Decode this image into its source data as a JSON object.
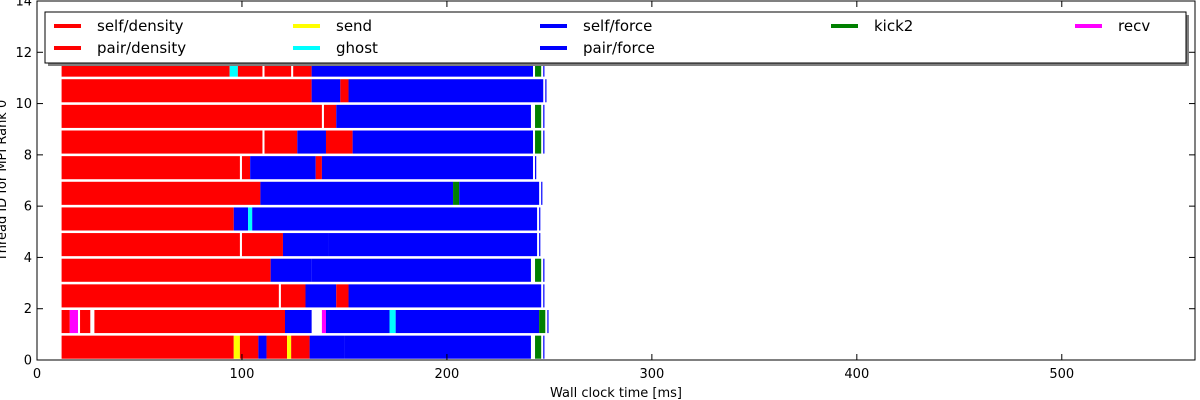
{
  "chart_data": {
    "type": "task-timeline",
    "xlabel": "Wall clock time [ms]",
    "ylabel": "Thread ID for MPI Rank 0",
    "xlim": [
      0,
      565
    ],
    "ylim": [
      0,
      14
    ],
    "xticks": [
      0,
      100,
      200,
      300,
      400,
      500
    ],
    "yticks": [
      0,
      2,
      4,
      6,
      8,
      10,
      12,
      14
    ],
    "legend_position": "top (full width, 5 columns)",
    "legend": [
      {
        "name": "self/density",
        "color": "#ff0000"
      },
      {
        "name": "pair/density",
        "color": "#ff0000"
      },
      {
        "name": "send",
        "color": "#ffff00"
      },
      {
        "name": "ghost",
        "color": "#00ffff"
      },
      {
        "name": "self/force",
        "color": "#0000ff"
      },
      {
        "name": "pair/force",
        "color": "#0000ff"
      },
      {
        "name": "kick2",
        "color": "#008000"
      },
      {
        "name": "recv",
        "color": "#ff00ff"
      }
    ],
    "threads": [
      {
        "id": 0,
        "segments": [
          {
            "task": "density",
            "start": 12,
            "end": 96
          },
          {
            "task": "send",
            "start": 96,
            "end": 99
          },
          {
            "task": "density",
            "start": 99,
            "end": 108
          },
          {
            "task": "force",
            "start": 108,
            "end": 112
          },
          {
            "task": "density",
            "start": 112,
            "end": 122
          },
          {
            "task": "send",
            "start": 122,
            "end": 124
          },
          {
            "task": "density",
            "start": 124,
            "end": 133
          },
          {
            "task": "force",
            "start": 133,
            "end": 150
          },
          {
            "task": "force",
            "start": 150,
            "end": 241
          },
          {
            "task": "kick2",
            "start": 243,
            "end": 246
          }
        ]
      },
      {
        "id": 1,
        "segments": [
          {
            "task": "density",
            "start": 12,
            "end": 16
          },
          {
            "task": "recv",
            "start": 16,
            "end": 20
          },
          {
            "task": "density",
            "start": 21,
            "end": 26
          },
          {
            "task": "density",
            "start": 28,
            "end": 121
          },
          {
            "task": "force",
            "start": 121,
            "end": 134
          },
          {
            "task": "recv",
            "start": 139,
            "end": 141
          },
          {
            "task": "force",
            "start": 141,
            "end": 172
          },
          {
            "task": "ghost",
            "start": 172,
            "end": 175
          },
          {
            "task": "force",
            "start": 175,
            "end": 245
          },
          {
            "task": "kick2",
            "start": 245,
            "end": 248
          }
        ]
      },
      {
        "id": 2,
        "segments": [
          {
            "task": "density",
            "start": 12,
            "end": 118
          },
          {
            "task": "density",
            "start": 119,
            "end": 131
          },
          {
            "task": "force",
            "start": 131,
            "end": 146
          },
          {
            "task": "density",
            "start": 146,
            "end": 152
          },
          {
            "task": "force",
            "start": 152,
            "end": 246
          }
        ]
      },
      {
        "id": 3,
        "segments": [
          {
            "task": "density",
            "start": 12,
            "end": 114
          },
          {
            "task": "force",
            "start": 114,
            "end": 134
          },
          {
            "task": "force",
            "start": 134,
            "end": 241
          },
          {
            "task": "kick2",
            "start": 243,
            "end": 246
          }
        ]
      },
      {
        "id": 4,
        "segments": [
          {
            "task": "density",
            "start": 12,
            "end": 99
          },
          {
            "task": "density",
            "start": 100,
            "end": 120
          },
          {
            "task": "force",
            "start": 120,
            "end": 142
          },
          {
            "task": "force",
            "start": 142,
            "end": 244
          }
        ]
      },
      {
        "id": 5,
        "segments": [
          {
            "task": "density",
            "start": 12,
            "end": 96
          },
          {
            "task": "force",
            "start": 96,
            "end": 103
          },
          {
            "task": "ghost",
            "start": 103,
            "end": 105
          },
          {
            "task": "force",
            "start": 105,
            "end": 244
          }
        ]
      },
      {
        "id": 6,
        "segments": [
          {
            "task": "density",
            "start": 12,
            "end": 109
          },
          {
            "task": "force",
            "start": 109,
            "end": 203
          },
          {
            "task": "kick2",
            "start": 203,
            "end": 206
          },
          {
            "task": "force",
            "start": 206,
            "end": 245
          }
        ]
      },
      {
        "id": 7,
        "segments": [
          {
            "task": "density",
            "start": 12,
            "end": 99
          },
          {
            "task": "density",
            "start": 100,
            "end": 104
          },
          {
            "task": "force",
            "start": 104,
            "end": 136
          },
          {
            "task": "density",
            "start": 136,
            "end": 139
          },
          {
            "task": "force",
            "start": 139,
            "end": 242
          }
        ]
      },
      {
        "id": 8,
        "segments": [
          {
            "task": "density",
            "start": 12,
            "end": 110
          },
          {
            "task": "density",
            "start": 111,
            "end": 127
          },
          {
            "task": "force",
            "start": 127,
            "end": 141
          },
          {
            "task": "density",
            "start": 141,
            "end": 154
          },
          {
            "task": "force",
            "start": 154,
            "end": 242
          },
          {
            "task": "kick2",
            "start": 243,
            "end": 246
          }
        ]
      },
      {
        "id": 9,
        "segments": [
          {
            "task": "density",
            "start": 12,
            "end": 139
          },
          {
            "task": "density",
            "start": 140,
            "end": 146
          },
          {
            "task": "force",
            "start": 146,
            "end": 241
          },
          {
            "task": "kick2",
            "start": 243,
            "end": 246
          }
        ]
      },
      {
        "id": 10,
        "segments": [
          {
            "task": "density",
            "start": 12,
            "end": 134
          },
          {
            "task": "force",
            "start": 134,
            "end": 148
          },
          {
            "task": "density",
            "start": 148,
            "end": 152
          },
          {
            "task": "force",
            "start": 152,
            "end": 247
          }
        ]
      },
      {
        "id": 11,
        "segments": [
          {
            "task": "density",
            "start": 12,
            "end": 94
          },
          {
            "task": "ghost",
            "start": 94,
            "end": 98
          },
          {
            "task": "density",
            "start": 98,
            "end": 110
          },
          {
            "task": "density",
            "start": 111,
            "end": 124
          },
          {
            "task": "density",
            "start": 125,
            "end": 134
          },
          {
            "task": "force",
            "start": 134,
            "end": 242
          },
          {
            "task": "kick2",
            "start": 243,
            "end": 246
          }
        ]
      }
    ]
  }
}
